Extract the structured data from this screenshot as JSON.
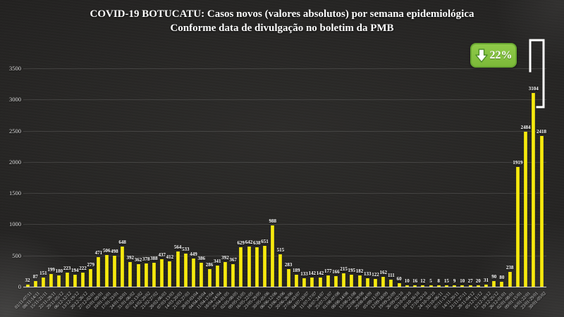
{
  "title": {
    "line1": "COVID-19 BOTUCATU: Casos novos (valores absolutos) por semana epidemiológica",
    "line2": "Conforme data de divulgação no boletim da PMB"
  },
  "badge": {
    "label": "22%",
    "direction": "down",
    "background_color": "#7cba39",
    "text_color": "#ffffff"
  },
  "chart_data": {
    "type": "bar",
    "title": "COVID-19 BOTUCATU: Casos novos (valores absolutos) por semana epidemiológica",
    "subtitle": "Conforme data de divulgação no boletim da PMB",
    "xlabel": "",
    "ylabel": "",
    "ylim": [
      0,
      3500
    ],
    "yticks": [
      0,
      500,
      1000,
      1500,
      2000,
      2500,
      3000,
      3500
    ],
    "grid": true,
    "legend": "none",
    "bar_color": "#f2e50e",
    "data_label_color": "#ffffff",
    "axis_text_color": "#d8d8d8",
    "annotation": {
      "text": "22%",
      "type": "decrease-badge"
    },
    "categories": [
      "01/11-07/11",
      "08/11-14/11",
      "15/11-21/11",
      "22/11-28/11",
      "29/11-05/12",
      "06/12-12/12",
      "13/12-19/12",
      "20/12-26/12",
      "27/12-02/01",
      "03/01-09/01",
      "10/01-16/01",
      "17/01-23/01",
      "24/01-30/01",
      "31/01-06/02",
      "07/02-13/02",
      "14/02-20/02",
      "21/02-27/02",
      "28/02-06/03",
      "07/03-13/03",
      "14/03-20/03",
      "21/03-27/03",
      "28/03-03/04",
      "04/04-10/04",
      "11/04-17/04",
      "18/04-24/04",
      "25/04-01/05",
      "02/05-08/05",
      "09/05-15/05",
      "16/05-22/05",
      "23/05-29/05",
      "30/05-05/06",
      "06/06-12/06",
      "13/06-19/06",
      "20/06-26/06",
      "27/06-03/07",
      "04/07-10/07",
      "11/07-17/07",
      "18/07-24/07",
      "25/07-31/07",
      "01/08-07/08",
      "08/08-14/08",
      "15/08-21/08",
      "22/08-28/08",
      "29/08-04/09",
      "05/09-11/09",
      "12/09-18/09",
      "19/09-25/09",
      "26/09-02/10",
      "03/10-09/10",
      "10/10-16/10",
      "17/10-23/10",
      "24/10-30/10",
      "31/10-06/11",
      "07/11-13/11",
      "14/11-20/11",
      "21/11-27/11",
      "28/11-04/12",
      "05/12-11/12",
      "12/12-18/12",
      "19/12-25/12",
      "26/12-01/01",
      "02/01-08/01",
      "09/01-15/01",
      "16/01-22/01",
      "23/01-29/01",
      "30/01-05/02"
    ],
    "values": [
      32,
      87,
      151,
      199,
      180,
      223,
      194,
      222,
      279,
      471,
      506,
      498,
      648,
      392,
      362,
      378,
      388,
      437,
      412,
      564,
      533,
      449,
      386,
      286,
      341,
      392,
      367,
      629,
      642,
      638,
      651,
      988,
      515,
      283,
      189,
      133,
      142,
      142,
      177,
      166,
      215,
      195,
      182,
      133,
      122,
      162,
      111,
      60,
      10,
      16,
      12,
      5,
      8,
      15,
      9,
      10,
      27,
      20,
      31,
      90,
      80,
      238,
      1919,
      2484,
      3104,
      2418
    ]
  }
}
